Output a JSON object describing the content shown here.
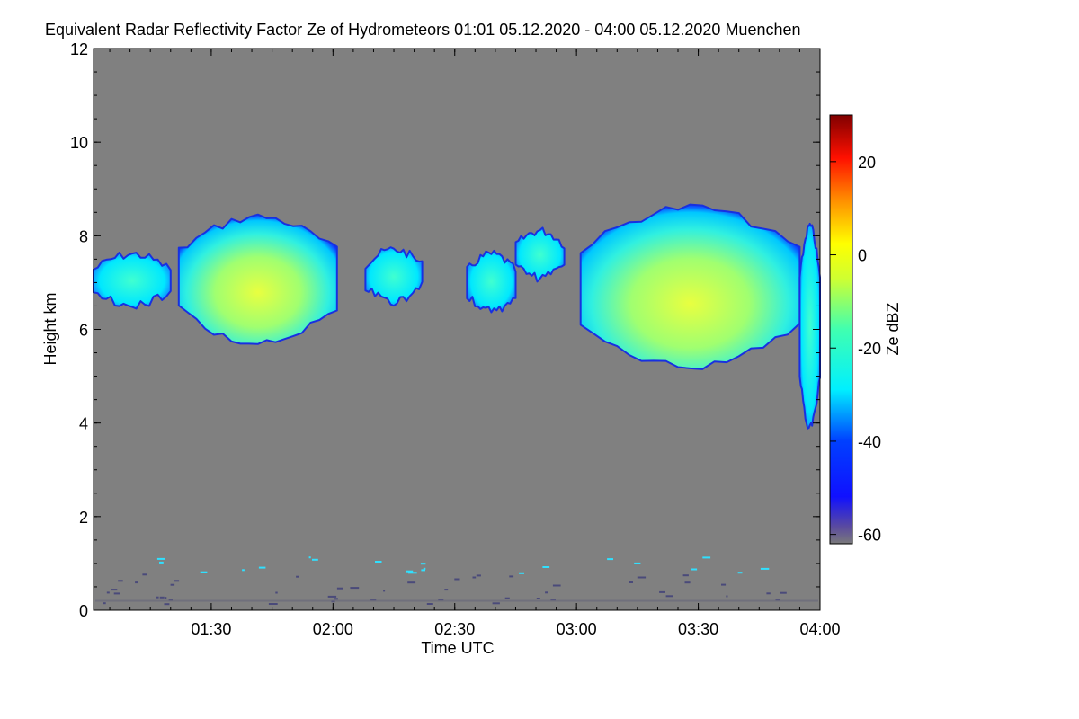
{
  "chart_data": {
    "type": "heatmap",
    "title": "Equivalent Radar Reflectivity Factor Ze of Hydrometeors   01:01 05.12.2020 - 04:00 05.12.2020 Muenchen",
    "xlabel": "Time UTC",
    "ylabel": "Height km",
    "x_range": [
      "01:01",
      "04:00"
    ],
    "x_ticks": [
      {
        "label": "01:30",
        "minutes": 90
      },
      {
        "label": "02:00",
        "minutes": 120
      },
      {
        "label": "02:30",
        "minutes": 150
      },
      {
        "label": "03:00",
        "minutes": 180
      },
      {
        "label": "03:30",
        "minutes": 210
      },
      {
        "label": "04:00",
        "minutes": 240
      }
    ],
    "ylim": [
      0,
      12
    ],
    "y_ticks": [
      "0",
      "2",
      "4",
      "6",
      "8",
      "10",
      "12"
    ],
    "colorbar": {
      "label": "Ze dBZ",
      "range": [
        -62,
        30
      ],
      "ticks": [
        "20",
        "0",
        "-20",
        "-40",
        "-60"
      ],
      "tick_values": [
        20,
        0,
        -20,
        -40,
        -60
      ]
    },
    "background_color": "#808080",
    "cloud_regions": [
      {
        "start": "01:01",
        "end": "01:20",
        "base_km": 6.4,
        "top_km": 7.7,
        "peak_dbz": -24
      },
      {
        "start": "01:22",
        "end": "02:01",
        "base_km": 5.6,
        "top_km": 8.5,
        "peak_dbz": -8
      },
      {
        "start": "02:08",
        "end": "02:22",
        "base_km": 6.5,
        "top_km": 7.8,
        "peak_dbz": -24
      },
      {
        "start": "02:33",
        "end": "02:45",
        "base_km": 6.3,
        "top_km": 7.7,
        "peak_dbz": -22
      },
      {
        "start": "02:45",
        "end": "02:57",
        "base_km": 7.0,
        "top_km": 8.2,
        "peak_dbz": -25
      },
      {
        "start": "03:01",
        "end": "03:55",
        "base_km": 5.1,
        "top_km": 8.7,
        "peak_dbz": -6
      },
      {
        "start": "03:55",
        "end": "04:00",
        "base_km": 3.8,
        "top_km": 8.3,
        "peak_dbz": -28
      }
    ]
  }
}
